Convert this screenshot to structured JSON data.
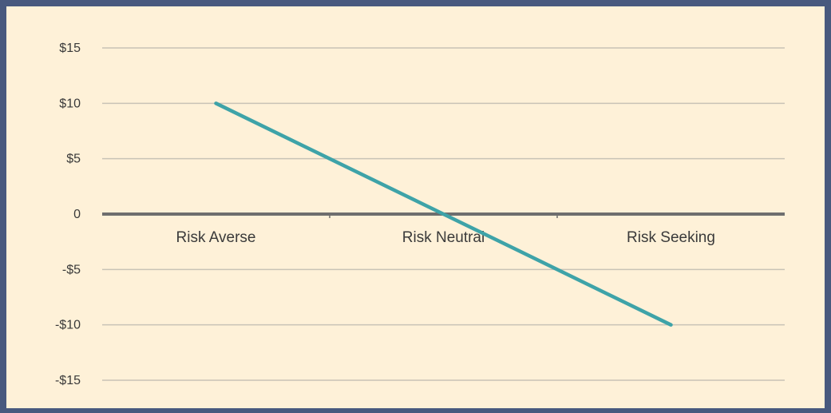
{
  "chart_data": {
    "type": "line",
    "categories": [
      "Risk Averse",
      "Risk Neutral",
      "Risk Seeking"
    ],
    "series": [
      {
        "values": [
          10,
          0,
          -10
        ]
      }
    ],
    "y_ticks": [
      "$15",
      "$10",
      "$5",
      "0",
      "-$5",
      "-$10",
      "-$15"
    ],
    "y_tick_values": [
      15,
      10,
      5,
      0,
      -5,
      -10,
      -15
    ],
    "ylim": [
      -15,
      15
    ],
    "grid": true,
    "colors": {
      "background": "#fef1d8",
      "border": "#48597e",
      "gridline": "#c8c3b6",
      "zero_axis": "#6e6e6e",
      "series": "#3ea3a8",
      "text": "#3a3a3a"
    }
  }
}
